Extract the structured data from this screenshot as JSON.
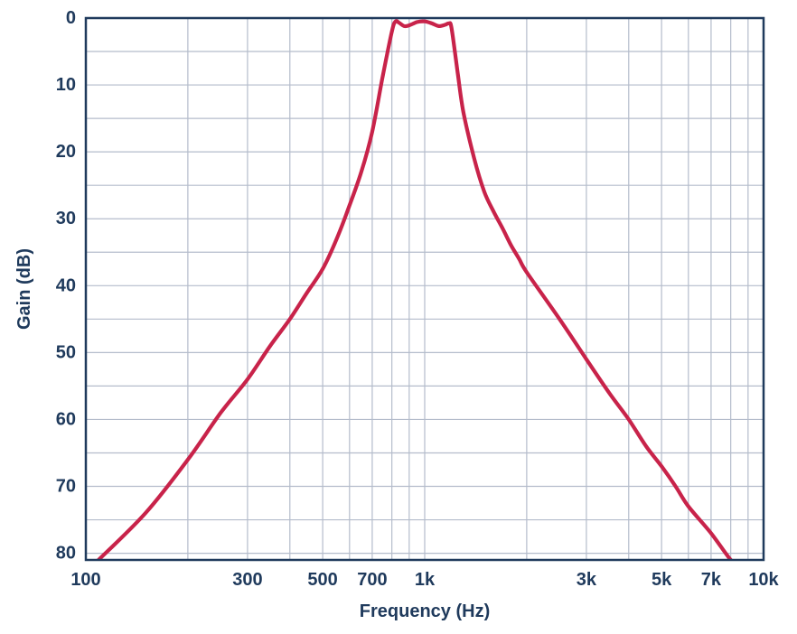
{
  "chart_data": {
    "type": "line",
    "xlabel": "Frequency (Hz)",
    "ylabel": "Gain (dB)",
    "x_scale": "log",
    "y_inverted": true,
    "xlim": [
      100,
      10000
    ],
    "ylim": [
      0,
      81
    ],
    "grid": true,
    "x_ticks": [
      {
        "value": 100,
        "label": "100"
      },
      {
        "value": 300,
        "label": "300"
      },
      {
        "value": 500,
        "label": "500"
      },
      {
        "value": 700,
        "label": "700"
      },
      {
        "value": 1000,
        "label": "1k"
      },
      {
        "value": 3000,
        "label": "3k"
      },
      {
        "value": 5000,
        "label": "5k"
      },
      {
        "value": 7000,
        "label": "7k"
      },
      {
        "value": 10000,
        "label": "10k"
      }
    ],
    "y_ticks": [
      {
        "value": 0,
        "label": "0"
      },
      {
        "value": 10,
        "label": "10"
      },
      {
        "value": 20,
        "label": "20"
      },
      {
        "value": 30,
        "label": "30"
      },
      {
        "value": 40,
        "label": "40"
      },
      {
        "value": 50,
        "label": "50"
      },
      {
        "value": 60,
        "label": "60"
      },
      {
        "value": 70,
        "label": "70"
      },
      {
        "value": 80,
        "label": "80"
      }
    ],
    "x_grid": [
      100,
      200,
      300,
      400,
      500,
      600,
      700,
      800,
      900,
      1000,
      2000,
      3000,
      4000,
      5000,
      6000,
      7000,
      8000,
      9000,
      10000
    ],
    "y_grid": [
      0,
      5,
      10,
      15,
      20,
      25,
      30,
      35,
      40,
      45,
      50,
      55,
      60,
      65,
      70,
      75,
      80
    ],
    "series": [
      {
        "color": "#c8234a",
        "x": [
          109,
          150,
          200,
          250,
          300,
          350,
          400,
          450,
          500,
          550,
          600,
          650,
          700,
          750,
          800,
          820,
          840,
          870,
          900,
          950,
          1000,
          1050,
          1100,
          1150,
          1180,
          1200,
          1250,
          1300,
          1400,
          1500,
          1600,
          1700,
          1800,
          1900,
          2000,
          2500,
          3000,
          3500,
          4000,
          4500,
          5000,
          5500,
          6000,
          7000,
          8000,
          8500
        ],
        "y": [
          81,
          74,
          66,
          59,
          54,
          49,
          45,
          41,
          37.5,
          33,
          28,
          23,
          17,
          9,
          2,
          0.5,
          0.7,
          1.2,
          1.1,
          0.6,
          0.5,
          0.8,
          1.2,
          1.0,
          0.8,
          1.5,
          8,
          14,
          21,
          26,
          29,
          31.5,
          34,
          36,
          38,
          45,
          51,
          56,
          60,
          64,
          67,
          70,
          73,
          77,
          81,
          82
        ]
      }
    ]
  }
}
